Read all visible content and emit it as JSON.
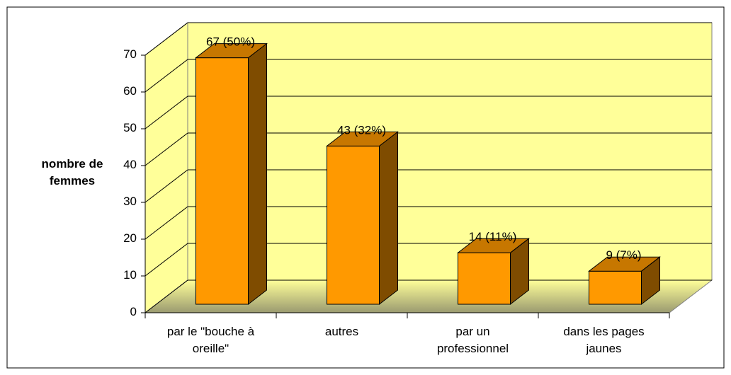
{
  "chart_data": {
    "type": "bar3d",
    "y_label": "nombre de\nfemmes",
    "categories": [
      "par le \"bouche à\noreille\"",
      "autres",
      "par un\nprofessionnel",
      "dans les pages\njaunes"
    ],
    "values": [
      67,
      43,
      14,
      9
    ],
    "value_labels": [
      "67 (50%)",
      "43 (32%)",
      "14 (11%)",
      "9 (7%)"
    ],
    "color": "#ff9900",
    "ylim": [
      0,
      70
    ],
    "yticks": [
      0,
      10,
      20,
      30,
      40,
      50,
      60,
      70
    ],
    "grid": true
  }
}
